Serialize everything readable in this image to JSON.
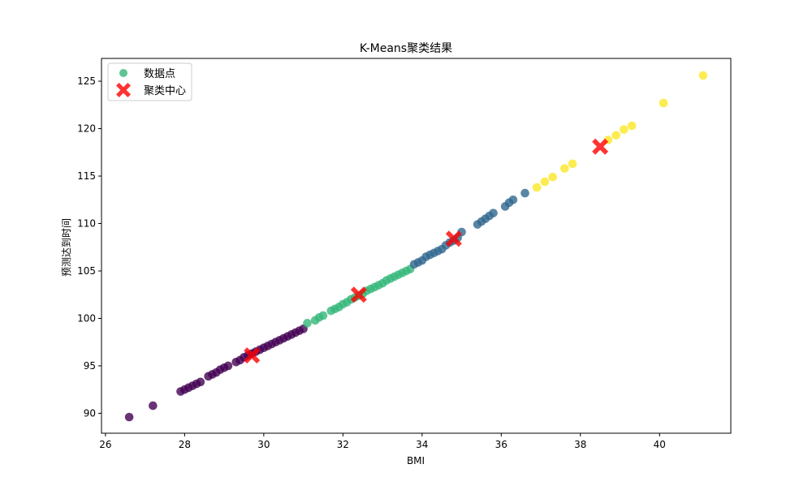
{
  "chart_data": {
    "type": "scatter",
    "title": "K-Means聚类结果",
    "xlabel": "BMI",
    "ylabel": "预测达到时间",
    "xlim": [
      25.9,
      41.8
    ],
    "ylim": [
      87.9,
      127.4
    ],
    "xticks": [
      26,
      28,
      30,
      32,
      34,
      36,
      38,
      40
    ],
    "yticks": [
      90,
      95,
      100,
      105,
      110,
      115,
      120,
      125
    ],
    "grid": false,
    "legend": {
      "placement": "top-left",
      "entries": [
        "数据点",
        "聚类中心"
      ]
    },
    "colors": {
      "cluster0": "#440154",
      "cluster1": "#31688e",
      "cluster2": "#35b779",
      "cluster3": "#fde725",
      "center": "#ff0000",
      "legend_point": "#35b779"
    },
    "series": [
      {
        "cluster": 0,
        "points": [
          [
            26.6,
            89.6
          ],
          [
            27.2,
            90.8
          ],
          [
            27.9,
            92.3
          ],
          [
            28.0,
            92.5
          ],
          [
            28.1,
            92.7
          ],
          [
            28.2,
            92.9
          ],
          [
            28.3,
            93.1
          ],
          [
            28.4,
            93.3
          ],
          [
            28.6,
            93.9
          ],
          [
            28.7,
            94.1
          ],
          [
            28.8,
            94.3
          ],
          [
            28.9,
            94.6
          ],
          [
            29.0,
            94.8
          ],
          [
            29.1,
            95.0
          ],
          [
            29.3,
            95.4
          ],
          [
            29.4,
            95.6
          ],
          [
            29.5,
            95.9
          ],
          [
            29.6,
            96.1
          ],
          [
            29.7,
            96.3
          ],
          [
            29.8,
            96.5
          ],
          [
            29.9,
            96.7
          ],
          [
            30.0,
            96.9
          ],
          [
            30.1,
            97.1
          ],
          [
            30.2,
            97.3
          ],
          [
            30.3,
            97.5
          ],
          [
            30.4,
            97.7
          ],
          [
            30.5,
            97.9
          ],
          [
            30.6,
            98.1
          ],
          [
            30.7,
            98.3
          ],
          [
            30.8,
            98.5
          ],
          [
            30.9,
            98.7
          ],
          [
            31.0,
            98.9
          ]
        ]
      },
      {
        "cluster": 2,
        "points": [
          [
            31.1,
            99.5
          ],
          [
            31.3,
            99.8
          ],
          [
            31.4,
            100.1
          ],
          [
            31.5,
            100.3
          ],
          [
            31.7,
            100.8
          ],
          [
            31.8,
            101.0
          ],
          [
            31.9,
            101.2
          ],
          [
            32.0,
            101.5
          ],
          [
            32.1,
            101.7
          ],
          [
            32.2,
            102.0
          ],
          [
            32.3,
            102.2
          ],
          [
            32.4,
            102.4
          ],
          [
            32.5,
            102.6
          ],
          [
            32.6,
            102.9
          ],
          [
            32.7,
            103.1
          ],
          [
            32.8,
            103.3
          ],
          [
            32.9,
            103.5
          ],
          [
            33.0,
            103.7
          ],
          [
            33.1,
            104.0
          ],
          [
            33.2,
            104.2
          ],
          [
            33.3,
            104.4
          ],
          [
            33.4,
            104.6
          ],
          [
            33.5,
            104.8
          ],
          [
            33.6,
            105.0
          ],
          [
            33.7,
            105.2
          ]
        ]
      },
      {
        "cluster": 1,
        "points": [
          [
            33.8,
            105.7
          ],
          [
            33.9,
            105.9
          ],
          [
            34.0,
            106.1
          ],
          [
            34.1,
            106.5
          ],
          [
            34.2,
            106.7
          ],
          [
            34.3,
            106.9
          ],
          [
            34.4,
            107.1
          ],
          [
            34.5,
            107.3
          ],
          [
            34.6,
            107.7
          ],
          [
            34.7,
            108.0
          ],
          [
            34.8,
            108.2
          ],
          [
            34.9,
            108.5
          ],
          [
            35.0,
            109.1
          ],
          [
            35.4,
            109.9
          ],
          [
            35.5,
            110.2
          ],
          [
            35.6,
            110.5
          ],
          [
            35.7,
            110.8
          ],
          [
            35.8,
            111.1
          ],
          [
            36.1,
            111.8
          ],
          [
            36.2,
            112.2
          ],
          [
            36.3,
            112.5
          ],
          [
            36.6,
            113.2
          ]
        ]
      },
      {
        "cluster": 3,
        "points": [
          [
            36.9,
            113.8
          ],
          [
            37.1,
            114.4
          ],
          [
            37.3,
            114.9
          ],
          [
            37.6,
            115.8
          ],
          [
            37.8,
            116.3
          ],
          [
            38.7,
            118.8
          ],
          [
            38.9,
            119.3
          ],
          [
            39.1,
            119.9
          ],
          [
            39.3,
            120.3
          ],
          [
            40.1,
            122.7
          ],
          [
            41.1,
            125.6
          ]
        ]
      }
    ],
    "centers": [
      [
        29.7,
        96.1
      ],
      [
        32.4,
        102.5
      ],
      [
        34.8,
        108.4
      ],
      [
        38.5,
        118.1
      ]
    ]
  }
}
